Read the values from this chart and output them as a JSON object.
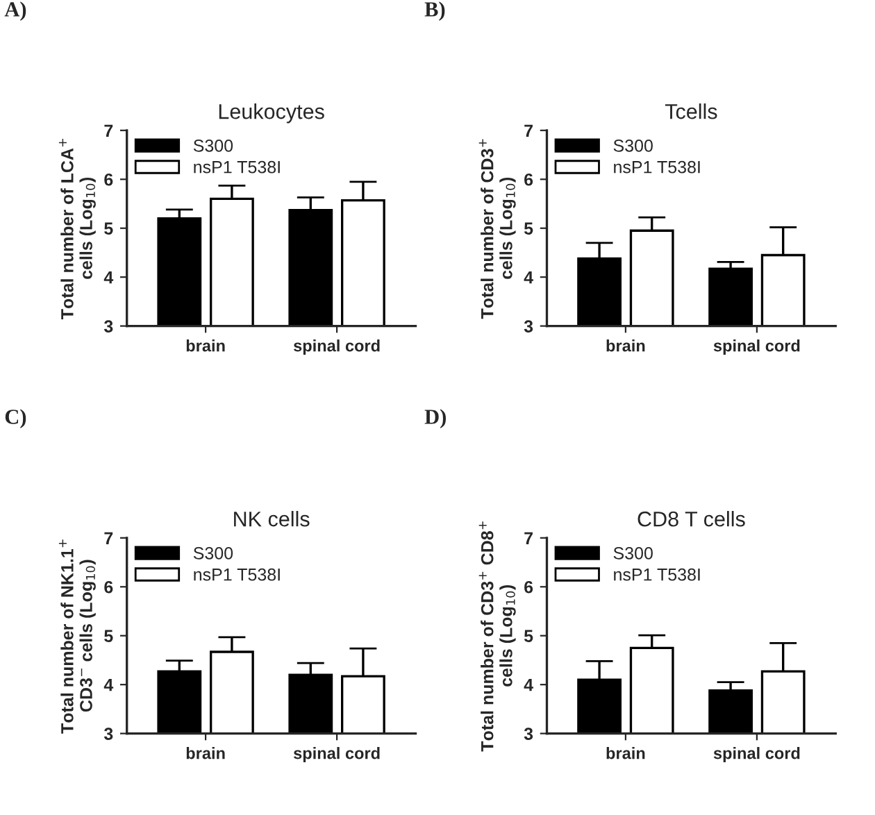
{
  "chart_data": [
    {
      "type": "bar",
      "title": "Leukocytes",
      "ylabel": "Total number of LCA$^{+}$\ncells (Log$_{10}$)",
      "categories": [
        "brain",
        "spinal cord"
      ],
      "annotations": [
        "A)"
      ],
      "ylim": [
        3,
        7
      ],
      "yticks": [
        3,
        4,
        5,
        6,
        7
      ],
      "legend": "top left",
      "grid": false,
      "series": [
        {
          "name": "S300",
          "color": "#000000",
          "values": [
            5.2,
            5.37
          ],
          "errors": [
            [
              5.2,
              5.38
            ],
            [
              5.37,
              5.63
            ]
          ]
        },
        {
          "name": "nsP1 T538I",
          "color": "#ffffff",
          "values": [
            5.6,
            5.57
          ],
          "errors": [
            [
              5.6,
              5.87
            ],
            [
              5.57,
              5.95
            ]
          ]
        }
      ]
    },
    {
      "type": "bar",
      "title": "Tcells",
      "ylabel": "Total number of CD3$^{+}$\ncells (Log$_{10}$)",
      "categories": [
        "brain",
        "spinal cord"
      ],
      "annotations": [
        "B)"
      ],
      "ylim": [
        3,
        7
      ],
      "yticks": [
        3,
        4,
        5,
        6,
        7
      ],
      "legend": "top left",
      "grid": false,
      "series": [
        {
          "name": "S300",
          "color": "#000000",
          "values": [
            4.38,
            4.17
          ],
          "errors": [
            [
              4.38,
              4.7
            ],
            [
              4.17,
              4.31
            ]
          ]
        },
        {
          "name": "nsP1 T538I",
          "color": "#ffffff",
          "values": [
            4.95,
            4.45
          ],
          "errors": [
            [
              4.95,
              5.22
            ],
            [
              4.45,
              5.02
            ]
          ]
        }
      ]
    },
    {
      "type": "bar",
      "title": "NK cells",
      "ylabel": "Total number of NK1.1$^{+}$\nCD3$^{−}$ cells (Log$_{10}$)",
      "categories": [
        "brain",
        "spinal cord"
      ],
      "annotations": [
        "C)"
      ],
      "ylim": [
        3,
        7
      ],
      "yticks": [
        3,
        4,
        5,
        6,
        7
      ],
      "legend": "top left",
      "grid": false,
      "series": [
        {
          "name": "S300",
          "color": "#000000",
          "values": [
            4.27,
            4.2
          ],
          "errors": [
            [
              4.27,
              4.49
            ],
            [
              4.2,
              4.44
            ]
          ]
        },
        {
          "name": "nsP1 T538I",
          "color": "#ffffff",
          "values": [
            4.67,
            4.17
          ],
          "errors": [
            [
              4.67,
              4.97
            ],
            [
              4.17,
              4.74
            ]
          ]
        }
      ]
    },
    {
      "type": "bar",
      "title": "CD8 T cells",
      "ylabel": "Total number of CD3$^{+}$ CD8$^{+}$\ncells (Log$_{10}$)",
      "categories": [
        "brain",
        "spinal cord"
      ],
      "annotations": [
        "D)"
      ],
      "ylim": [
        3,
        7
      ],
      "yticks": [
        3,
        4,
        5,
        6,
        7
      ],
      "legend": "top left",
      "grid": false,
      "series": [
        {
          "name": "S300",
          "color": "#000000",
          "values": [
            4.1,
            3.88
          ],
          "errors": [
            [
              4.1,
              4.48
            ],
            [
              3.88,
              4.05
            ]
          ]
        },
        {
          "name": "nsP1 T538I",
          "color": "#ffffff",
          "values": [
            4.75,
            4.27
          ],
          "errors": [
            [
              4.75,
              5.01
            ],
            [
              4.27,
              4.85
            ]
          ]
        }
      ]
    }
  ]
}
